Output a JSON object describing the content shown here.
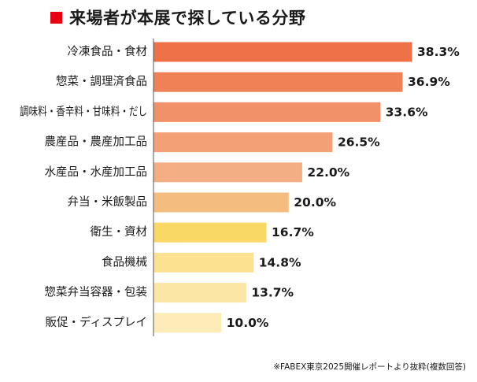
{
  "chart_data": {
    "type": "bar",
    "orientation": "horizontal",
    "title": "来場者が本展で探している分野",
    "categories": [
      "冷凍食品・食材",
      "惣菜・調理済食品",
      "調味料・香辛料・甘味料・だし",
      "農産品・農産加工品",
      "水産品・水産加工品",
      "弁当・米飯製品",
      "衛生・資材",
      "食品機械",
      "惣菜弁当容器・包装",
      "販促・ディスプレイ"
    ],
    "values": [
      38.3,
      36.9,
      33.6,
      26.5,
      22.0,
      20.0,
      16.7,
      14.8,
      13.7,
      10.0
    ],
    "value_labels": [
      "38.3%",
      "36.9%",
      "33.6%",
      "26.5%",
      "22.0%",
      "20.0%",
      "16.7%",
      "14.8%",
      "13.7%",
      "10.0%"
    ],
    "unit": "%",
    "colors": [
      "#ee7148",
      "#ef8157",
      "#f0916a",
      "#f3a077",
      "#f4ae83",
      "#f5bd7d",
      "#fad866",
      "#fbe190",
      "#fce6a5",
      "#fdebb8"
    ],
    "title_marker_color": "#e60012",
    "xlim": [
      0,
      40
    ],
    "grid": false,
    "legend": "none",
    "footnote": "※FABEX東京2025開催レポートより抜粋(複数回答)"
  }
}
